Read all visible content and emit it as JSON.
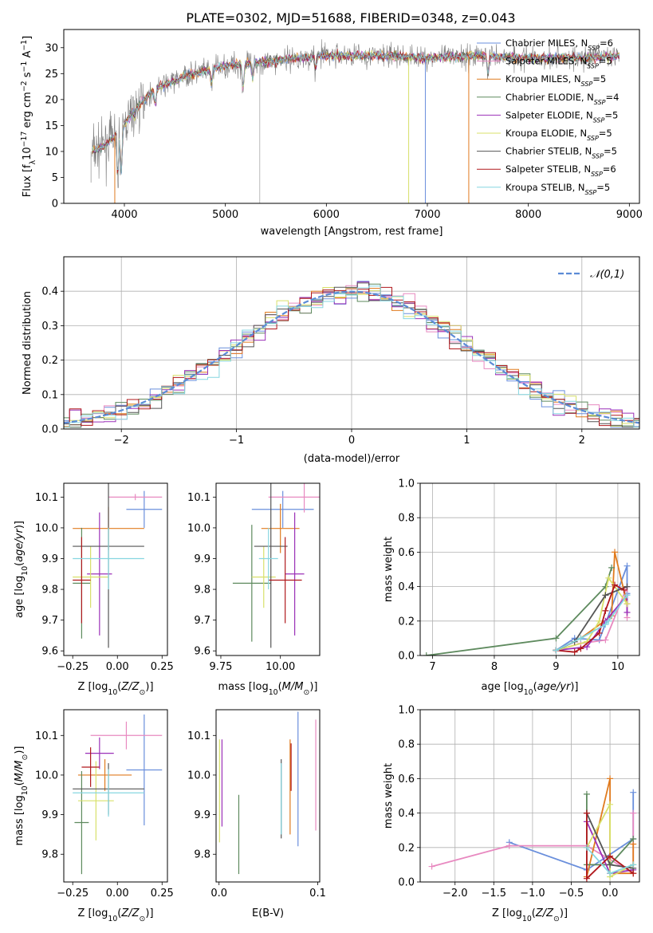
{
  "figure": {
    "title": "PLATE=0302, MJD=51688, FIBERID=0348, z=0.043"
  },
  "models": [
    {
      "name": "Chabrier MILES",
      "nssp": "6",
      "color": "#6a8fdc"
    },
    {
      "name": "Salpeter MILES",
      "nssp": "5",
      "color": "#e889c0"
    },
    {
      "name": "Kroupa MILES",
      "nssp": "5",
      "color": "#e07b1f"
    },
    {
      "name": "Chabrier ELODIE",
      "nssp": "4",
      "color": "#5e8a5e"
    },
    {
      "name": "Salpeter ELODIE",
      "nssp": "5",
      "color": "#9b30b8"
    },
    {
      "name": "Kroupa ELODIE",
      "nssp": "5",
      "color": "#d8e06a"
    },
    {
      "name": "Chabrier STELIB",
      "nssp": "5",
      "color": "#555555"
    },
    {
      "name": "Salpeter STELIB",
      "nssp": "6",
      "color": "#b0181c"
    },
    {
      "name": "Kroupa STELIB",
      "nssp": "5",
      "color": "#86d6e0"
    }
  ],
  "chart_data": [
    {
      "id": "spectrum",
      "type": "line",
      "xlabel": "wavelength [Angstrom, rest frame]",
      "ylabel": "Flux [f_λ 10^-17 erg cm^-2 s^-1 A^-1]",
      "xlim": [
        3400,
        9100
      ],
      "ylim": [
        0,
        33.5
      ],
      "xticks": [
        4000,
        5000,
        6000,
        7000,
        8000,
        9000
      ],
      "yticks": [
        0,
        5,
        10,
        15,
        20,
        25,
        30
      ],
      "grid": false,
      "legend": "upper right",
      "continuum": [
        [
          3680,
          10
        ],
        [
          3800,
          11
        ],
        [
          3950,
          14
        ],
        [
          4100,
          18
        ],
        [
          4300,
          22
        ],
        [
          4600,
          24.5
        ],
        [
          5000,
          26.5
        ],
        [
          5500,
          27.5
        ],
        [
          6000,
          28.5
        ],
        [
          6500,
          28.5
        ],
        [
          7000,
          28
        ],
        [
          7500,
          28.5
        ],
        [
          8000,
          28
        ],
        [
          8500,
          28
        ],
        [
          8900,
          28.5
        ]
      ],
      "absorption_dips": [
        [
          3934,
          5
        ],
        [
          3969,
          6
        ],
        [
          4102,
          17
        ],
        [
          4305,
          19
        ],
        [
          4861,
          23
        ],
        [
          5175,
          22
        ],
        [
          5270,
          24
        ],
        [
          5893,
          26
        ],
        [
          7600,
          25
        ]
      ]
    },
    {
      "id": "residuals",
      "type": "step",
      "xlabel": "(data-model)/error",
      "ylabel": "Normed distribution",
      "xlim": [
        -2.5,
        2.5
      ],
      "ylim": [
        0,
        0.5
      ],
      "xticks": [
        -2,
        -1,
        0,
        1,
        2
      ],
      "yticks": [
        0.0,
        0.1,
        0.2,
        0.3,
        0.4
      ],
      "grid": true,
      "legend": "upper right",
      "reference_label": "𝒩(0,1)",
      "reference_color": "#5b8bd6",
      "bin_width": 0.1
    },
    {
      "id": "age-vs-Z",
      "type": "errorbar",
      "xlabel": "Z [log10(Z/Z⊙)]",
      "ylabel": "age  [log10(age/yr)]",
      "xlim": [
        -0.3,
        0.28
      ],
      "ylim": [
        9.585,
        10.145
      ],
      "xticks": [
        -0.25,
        0.0,
        0.25
      ],
      "yticks": [
        9.6,
        9.7,
        9.8,
        9.9,
        10.0,
        10.1
      ],
      "points": [
        {
          "x": 0.15,
          "y": 10.06,
          "xerr": 0.1,
          "yerr": 0.06
        },
        {
          "x": 0.1,
          "y": 10.1,
          "xerr": 0.15,
          "yerr": 0.01
        },
        {
          "x": -0.05,
          "y": 9.998,
          "xerr": 0.2,
          "yerr": 0.07
        },
        {
          "x": -0.2,
          "y": 9.82,
          "xerr": 0.05,
          "yerr": 0.18
        },
        {
          "x": -0.1,
          "y": 9.85,
          "xerr": 0.07,
          "yerr": 0.2
        },
        {
          "x": -0.15,
          "y": 9.84,
          "xerr": 0.1,
          "yerr": 0.1
        },
        {
          "x": -0.05,
          "y": 9.94,
          "xerr": 0.2,
          "yerr": 0.33
        },
        {
          "x": -0.2,
          "y": 9.83,
          "xerr": 0.05,
          "yerr": 0.14
        },
        {
          "x": -0.05,
          "y": 9.9,
          "xerr": 0.2,
          "yerr": 0.1
        }
      ]
    },
    {
      "id": "age-vs-mass",
      "type": "errorbar",
      "xlabel": "mass [log10(M/M⊙)]",
      "xlim": [
        9.73,
        10.165
      ],
      "ylim": [
        9.585,
        10.145
      ],
      "xticks": [
        9.75,
        10.0
      ],
      "yticks": [
        9.6,
        9.7,
        9.8,
        9.9,
        10.0,
        10.1
      ],
      "points": [
        {
          "x": 10.01,
          "y": 10.06,
          "xerr": 0.13,
          "yerr": 0.06
        },
        {
          "x": 10.1,
          "y": 10.1,
          "xerr": 0.15,
          "yerr": 0.05
        },
        {
          "x": 10.0,
          "y": 9.998,
          "xerr": 0.08,
          "yerr": 0.08
        },
        {
          "x": 9.88,
          "y": 9.82,
          "xerr": 0.08,
          "yerr": 0.19
        },
        {
          "x": 10.06,
          "y": 9.85,
          "xerr": 0.04,
          "yerr": 0.2
        },
        {
          "x": 9.93,
          "y": 9.84,
          "xerr": 0.05,
          "yerr": 0.1
        },
        {
          "x": 9.96,
          "y": 9.94,
          "xerr": 0.07,
          "yerr": 0.33
        },
        {
          "x": 10.02,
          "y": 9.83,
          "xerr": 0.07,
          "yerr": 0.14
        },
        {
          "x": 9.95,
          "y": 9.9,
          "xerr": 0.04,
          "yerr": 0.1
        }
      ]
    },
    {
      "id": "weight-vs-age",
      "type": "line",
      "xlabel": "age  [log10(age/yr)]",
      "ylabel": "mass weight",
      "xlim": [
        6.8,
        10.35
      ],
      "ylim": [
        0,
        1.0
      ],
      "xticks": [
        7,
        8,
        9,
        10
      ],
      "yticks": [
        0.0,
        0.2,
        0.4,
        0.6,
        0.8,
        1.0
      ],
      "grid": true,
      "series": [
        {
          "x": [
            9.0,
            9.3,
            9.7,
            10.15,
            10.15
          ],
          "y": [
            0.03,
            0.1,
            0.09,
            0.52,
            0.36
          ]
        },
        {
          "x": [
            9.0,
            9.4,
            9.8,
            10.15,
            10.15
          ],
          "y": [
            0.03,
            0.07,
            0.09,
            0.4,
            0.22
          ]
        },
        {
          "x": [
            9.0,
            9.4,
            9.9,
            9.95,
            10.15
          ],
          "y": [
            0.03,
            0.1,
            0.23,
            0.6,
            0.3
          ]
        },
        {
          "x": [
            6.9,
            9.0,
            9.8,
            9.9
          ],
          "y": [
            0.0,
            0.1,
            0.4,
            0.51
          ]
        },
        {
          "x": [
            9.0,
            9.5,
            9.8,
            10.15,
            10.15
          ],
          "y": [
            0.03,
            0.05,
            0.2,
            0.35,
            0.25
          ]
        },
        {
          "x": [
            9.0,
            9.5,
            9.7,
            9.85,
            10.15
          ],
          "y": [
            0.03,
            0.08,
            0.2,
            0.45,
            0.3
          ]
        },
        {
          "x": [
            9.0,
            9.3,
            9.8,
            10.15
          ],
          "y": [
            0.03,
            0.08,
            0.35,
            0.4
          ]
        },
        {
          "x": [
            9.0,
            9.3,
            9.4,
            9.7,
            9.8,
            9.95,
            10.1
          ],
          "y": [
            0.03,
            0.02,
            0.04,
            0.13,
            0.26,
            0.41,
            0.38
          ]
        },
        {
          "x": [
            9.0,
            9.4,
            9.8,
            9.85,
            10.15
          ],
          "y": [
            0.03,
            0.1,
            0.18,
            0.2,
            0.35
          ]
        }
      ]
    },
    {
      "id": "mass-vs-Z",
      "type": "errorbar",
      "xlabel": "Z [log10(Z/Z⊙)]",
      "ylabel": "mass [log10(M/M⊙)]",
      "xlim": [
        -0.3,
        0.28
      ],
      "ylim": [
        9.73,
        10.165
      ],
      "xticks": [
        -0.25,
        0.0,
        0.25
      ],
      "yticks": [
        9.8,
        9.9,
        10.0,
        10.1
      ],
      "points": [
        {
          "x": 0.15,
          "y": 10.013,
          "xerr": 0.1,
          "yerr": 0.14
        },
        {
          "x": 0.05,
          "y": 10.1,
          "xerr": 0.2,
          "yerr": 0.035
        },
        {
          "x": -0.07,
          "y": 10.0,
          "xerr": 0.15,
          "yerr": 0.04
        },
        {
          "x": -0.2,
          "y": 9.88,
          "xerr": 0.04,
          "yerr": 0.13
        },
        {
          "x": -0.1,
          "y": 10.055,
          "xerr": 0.08,
          "yerr": 0.04
        },
        {
          "x": -0.12,
          "y": 9.935,
          "xerr": 0.1,
          "yerr": 0.1
        },
        {
          "x": -0.05,
          "y": 9.965,
          "xerr": 0.2,
          "yerr": 0.065
        },
        {
          "x": -0.15,
          "y": 10.02,
          "xerr": 0.05,
          "yerr": 0.05
        },
        {
          "x": -0.05,
          "y": 9.955,
          "xerr": 0.2,
          "yerr": 0.06
        }
      ]
    },
    {
      "id": "mass-vs-ebv",
      "type": "errorbar",
      "xlabel": "E(B-V)",
      "xlim": [
        -0.003,
        0.102
      ],
      "ylim": [
        9.73,
        10.165
      ],
      "xticks": [
        0.0,
        0.1
      ],
      "yticks": [
        9.8,
        9.9,
        10.0,
        10.1
      ],
      "points": [
        {
          "x": 0.08,
          "y": 9.99,
          "xerr": 0,
          "yerr": 0.17
        },
        {
          "x": 0.098,
          "y": 10.0,
          "xerr": 0,
          "yerr": 0.14
        },
        {
          "x": 0.072,
          "y": 9.97,
          "xerr": 0,
          "yerr": 0.12
        },
        {
          "x": 0.02,
          "y": 9.85,
          "xerr": 0,
          "yerr": 0.1
        },
        {
          "x": 0.003,
          "y": 9.98,
          "xerr": 0,
          "yerr": 0.11
        },
        {
          "x": 0.0005,
          "y": 9.96,
          "xerr": 0,
          "yerr": 0.13
        },
        {
          "x": 0.063,
          "y": 9.94,
          "xerr": 0,
          "yerr": 0.1
        },
        {
          "x": 0.073,
          "y": 10.02,
          "xerr": 0,
          "yerr": 0.06
        },
        {
          "x": 0.063,
          "y": 9.94,
          "xerr": 0,
          "yerr": 0.09
        }
      ]
    },
    {
      "id": "weight-vs-Z",
      "type": "line",
      "xlabel": "Z [log10(Z/Z⊙)]",
      "ylabel": "mass weight",
      "xlim": [
        -2.45,
        0.38
      ],
      "ylim": [
        0,
        1.0
      ],
      "xticks": [
        -2.0,
        -1.5,
        -1.0,
        -0.5,
        0.0
      ],
      "yticks": [
        0.0,
        0.2,
        0.4,
        0.6,
        0.8,
        1.0
      ],
      "grid": true,
      "series": [
        {
          "x": [
            -1.3,
            -0.3,
            0.3,
            0.3
          ],
          "y": [
            0.23,
            0.07,
            0.25,
            0.52
          ]
        },
        {
          "x": [
            -2.3,
            -1.3,
            -0.3,
            0.3,
            0.3
          ],
          "y": [
            0.09,
            0.21,
            0.21,
            0.05,
            0.4
          ]
        },
        {
          "x": [
            -0.3,
            0.0,
            0.0,
            0.3,
            0.3
          ],
          "y": [
            0.03,
            0.6,
            0.05,
            0.05,
            0.22
          ]
        },
        {
          "x": [
            -0.3,
            -0.3,
            0.0,
            0.3
          ],
          "y": [
            0.51,
            0.1,
            0.1,
            0.25
          ]
        },
        {
          "x": [
            -0.3,
            0.0,
            0.3
          ],
          "y": [
            0.35,
            0.05,
            0.07
          ]
        },
        {
          "x": [
            -0.3,
            0.0,
            0.0,
            0.3
          ],
          "y": [
            0.2,
            0.45,
            0.03,
            0.1
          ]
        },
        {
          "x": [
            -0.3,
            0.0,
            0.3
          ],
          "y": [
            0.4,
            0.1,
            0.08
          ]
        },
        {
          "x": [
            -0.3,
            -0.3,
            0.0,
            0.3
          ],
          "y": [
            0.4,
            0.02,
            0.15,
            0.05
          ]
        },
        {
          "x": [
            -0.3,
            0.0,
            0.3
          ],
          "y": [
            0.2,
            0.05,
            0.1
          ]
        }
      ]
    }
  ]
}
